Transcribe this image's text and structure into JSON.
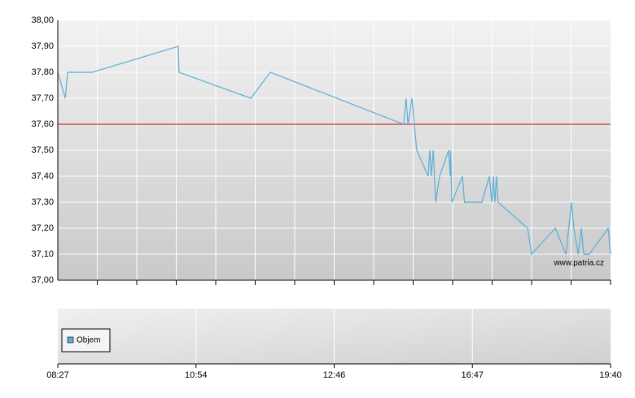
{
  "chart_data": {
    "type": "line",
    "x": [
      0,
      1.9,
      2.5,
      8.7,
      30.5,
      30.7,
      48.9,
      53.8,
      87.6,
      88.2,
      88.7,
      89.7,
      90.9,
      93.8,
      94.2,
      94.6,
      95.1,
      95.7,
      96.7,
      99,
      99.4,
      99.5,
      99.8,
      102.5,
      103,
      107.4,
      109.3,
      109.9,
      110.3,
      110.7,
      111.1,
      111.5,
      119,
      120,
      126,
      128.7,
      130.1,
      130.7,
      131.8,
      132.6,
      133.2,
      134.6,
      139.4,
      140
    ],
    "series": [
      {
        "color": "#5aaed6",
        "values": [
          37.8,
          37.7,
          37.8,
          37.8,
          37.9,
          37.8,
          37.7,
          37.8,
          37.6,
          37.7,
          37.6,
          37.7,
          37.5,
          37.4,
          37.5,
          37.4,
          37.5,
          37.3,
          37.4,
          37.5,
          37.4,
          37.5,
          37.3,
          37.4,
          37.3,
          37.3,
          37.4,
          37.3,
          37.4,
          37.3,
          37.4,
          37.3,
          37.2,
          37.1,
          37.2,
          37.1,
          37.3,
          37.2,
          37.1,
          37.2,
          37.1,
          37.1,
          37.2,
          37.1
        ]
      }
    ],
    "xlim": [
      0,
      140
    ],
    "xticks": [
      {
        "value": 0,
        "label": "08:27"
      },
      {
        "value": 35,
        "label": "10:54"
      },
      {
        "value": 70,
        "label": "12:46"
      },
      {
        "value": 105,
        "label": "16:47"
      },
      {
        "value": 140,
        "label": "19:40"
      }
    ],
    "ylim": [
      37,
      38
    ],
    "yticks": [
      {
        "value": 37,
        "label": "37,00"
      },
      {
        "value": 37.1,
        "label": "37,10"
      },
      {
        "value": 37.2,
        "label": "37,20"
      },
      {
        "value": 37.3,
        "label": "37,30"
      },
      {
        "value": 37.4,
        "label": "37,40"
      },
      {
        "value": 37.5,
        "label": "37,50"
      },
      {
        "value": 37.6,
        "label": "37,60"
      },
      {
        "value": 37.7,
        "label": "37,70"
      },
      {
        "value": 37.8,
        "label": "37,80"
      },
      {
        "value": 37.9,
        "label": "37,90"
      },
      {
        "value": 38,
        "label": "38,00"
      }
    ],
    "grid": true,
    "reference_line": {
      "value": 37.6,
      "color": "#cc0000"
    },
    "watermark": "www.patria.cz",
    "volume_legend": {
      "name": "Objem",
      "color": "#5aaed6"
    }
  }
}
